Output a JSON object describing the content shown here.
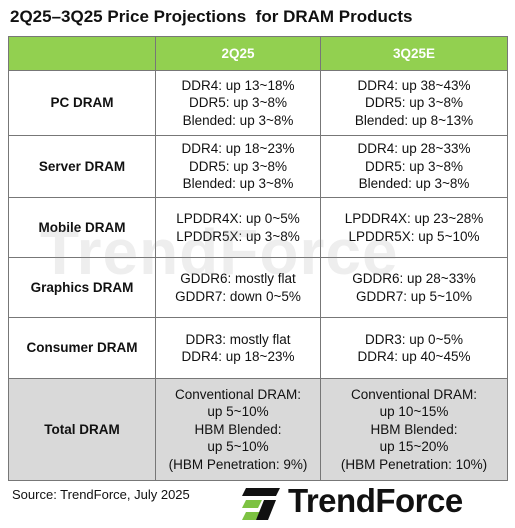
{
  "header": {
    "title": "2Q25–3Q25 Price Projections  for DRAM Products"
  },
  "table": {
    "columns": [
      "2Q25",
      "3Q25E"
    ],
    "rows": [
      {
        "label": "PC DRAM",
        "cells": [
          [
            "DDR4: up 13~18%",
            "DDR5: up 3~8%",
            "Blended: up 3~8%"
          ],
          [
            "DDR4: up 38~43%",
            "DDR5: up 3~8%",
            "Blended: up 8~13%"
          ]
        ]
      },
      {
        "label": "Server DRAM",
        "cells": [
          [
            "DDR4: up 18~23%",
            "DDR5: up 3~8%",
            "Blended: up 3~8%"
          ],
          [
            "DDR4: up 28~33%",
            "DDR5: up 3~8%",
            "Blended: up 3~8%"
          ]
        ]
      },
      {
        "label": "Mobile DRAM",
        "cells": [
          [
            "LPDDR4X: up 0~5%",
            "LPDDR5X: up 3~8%"
          ],
          [
            "LPDDR4X: up 23~28%",
            "LPDDR5X: up 5~10%"
          ]
        ]
      },
      {
        "label": "Graphics DRAM",
        "cells": [
          [
            "GDDR6: mostly flat",
            "GDDR7: down 0~5%"
          ],
          [
            "GDDR6: up 28~33%",
            "GDDR7: up 5~10%"
          ]
        ]
      },
      {
        "label": "Consumer DRAM",
        "cells": [
          [
            "DDR3: mostly flat",
            "DDR4: up 18~23%"
          ],
          [
            "DDR3: up 0~5%",
            "DDR4: up 40~45%"
          ]
        ]
      },
      {
        "label": "Total DRAM",
        "cells": [
          [
            "Conventional DRAM:",
            "up 5~10%",
            "HBM Blended:",
            "up 5~10%",
            "(HBM Penetration: 9%)"
          ],
          [
            "Conventional DRAM:",
            "up 10~15%",
            "HBM Blended:",
            "up 15~20%",
            "(HBM Penetration: 10%)"
          ]
        ]
      }
    ]
  },
  "watermark": "TrendForce",
  "source": "Source: TrendForce, July 2025",
  "logo": "TrendForce"
}
